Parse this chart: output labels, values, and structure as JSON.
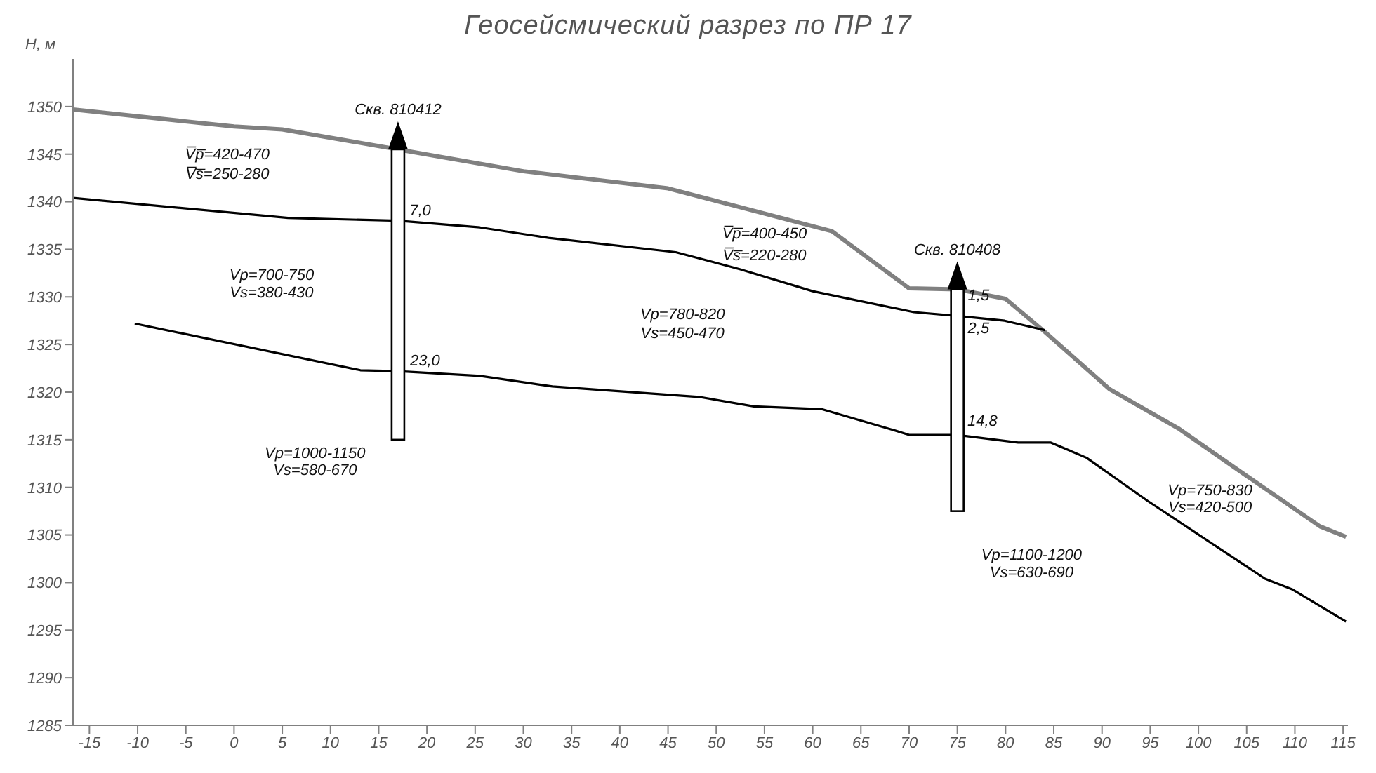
{
  "chart_data": {
    "type": "line",
    "title": "Геосейсмический  разрез по ПР  17",
    "ylabel": "Н, м",
    "xlim": [
      -16.7,
      115.5
    ],
    "ylim": [
      1285,
      1355
    ],
    "xticks": [
      -15,
      -10,
      -5,
      0,
      5,
      10,
      15,
      20,
      25,
      30,
      35,
      40,
      45,
      50,
      55,
      60,
      65,
      70,
      75,
      80,
      85,
      90,
      95,
      100,
      105,
      110,
      115
    ],
    "yticks": [
      1285,
      1290,
      1295,
      1300,
      1305,
      1310,
      1315,
      1320,
      1325,
      1330,
      1335,
      1340,
      1345,
      1350
    ],
    "grid": false,
    "legend": false,
    "marker": "none",
    "line_style": "solid",
    "series": [
      {
        "color": "#808080",
        "x": [
          -16.7,
          0,
          5,
          17,
          30,
          45,
          62,
          70,
          75,
          80,
          84.1,
          90.8,
          97.9,
          105,
          112.6,
          115.3
        ],
        "values": [
          1349.7,
          1347.9,
          1347.6,
          1345.5,
          1343.2,
          1341.4,
          1336.9,
          1330.9,
          1330.8,
          1329.8,
          1326.3,
          1320.3,
          1316.2,
          1311.2,
          1305.9,
          1304.8
        ]
      },
      {
        "color": "#000000",
        "x": [
          -16.7,
          5.6,
          17,
          25.5,
          32.6,
          45.8,
          52.5,
          60,
          70.5,
          75,
          79.9,
          84.1
        ],
        "values": [
          1340.4,
          1338.3,
          1338,
          1337.3,
          1336.2,
          1334.7,
          1332.9,
          1330.6,
          1328.4,
          1328,
          1327.5,
          1326.5
        ]
      },
      {
        "color": "#000000",
        "x": [
          -10.3,
          13.1,
          17,
          25.5,
          33,
          48.2,
          53.9,
          61,
          68.1,
          70,
          75,
          81.3,
          84.7,
          88.4,
          94.7,
          106.9,
          109.7,
          115.3
        ],
        "values": [
          1327.2,
          1322.3,
          1322.2,
          1321.7,
          1320.6,
          1319.5,
          1318.5,
          1318.2,
          1316.1,
          1315.5,
          1315.5,
          1314.7,
          1314.7,
          1313.1,
          1308.6,
          1300.4,
          1299.3,
          1295.9
        ]
      },
      {
        "type": "bar",
        "color": "#ffffff",
        "x": [
          17,
          75
        ],
        "base": [
          1315,
          1307.5
        ],
        "values": [
          30.5,
          23.3
        ]
      }
    ],
    "annotations": [
      "Скв. 810412",
      "Скв. 810408",
      "7,0",
      "23,0",
      "1,5",
      "2,5",
      "14,8",
      "V̅p̅=420-470",
      "V̅s̅=250-280",
      "Vp=700-750",
      "Vs=380-430",
      "Vp=1000-1150",
      "Vs=580-670",
      "V̅p̅=400-450",
      "V̅s̅=220-280",
      "Vp=780-820",
      "Vs=450-470",
      "Vp=750-830",
      "Vs=420-500",
      "Vp=1100-1200",
      "Vs=630-690"
    ]
  }
}
